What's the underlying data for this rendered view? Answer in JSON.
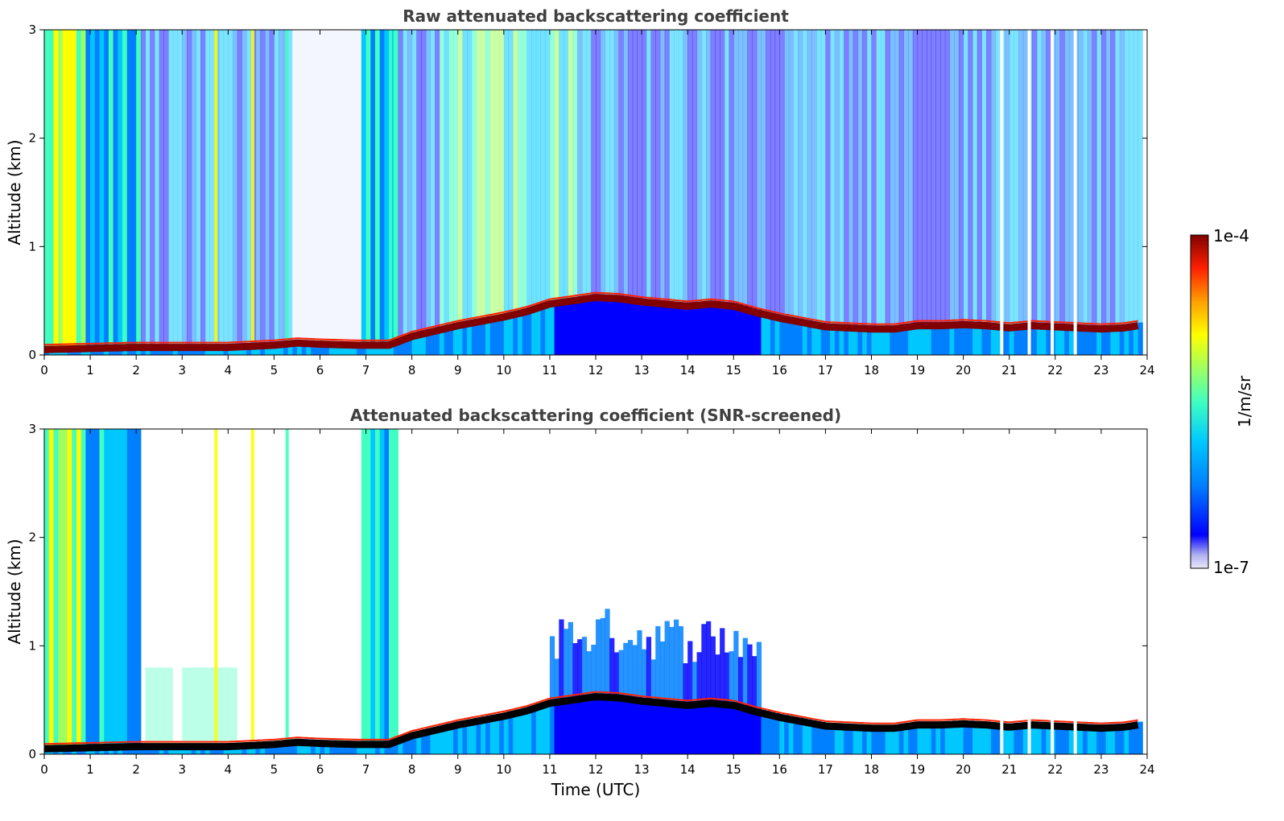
{
  "chart_data": [
    {
      "type": "heatmap",
      "title": "Raw attenuated backscattering coefficient",
      "xlabel": "",
      "ylabel": "Altitude (km)",
      "xlim": [
        0,
        24
      ],
      "ylim": [
        0,
        3
      ],
      "xticks": [
        "0",
        "1",
        "2",
        "3",
        "4",
        "5",
        "6",
        "7",
        "8",
        "9",
        "10",
        "11",
        "12",
        "13",
        "14",
        "15",
        "16",
        "17",
        "18",
        "19",
        "20",
        "21",
        "22",
        "23",
        "24"
      ],
      "yticks": [
        "0",
        "1",
        "2",
        "3"
      ],
      "grid": false,
      "layer_top_km": {
        "time_utc": [
          0,
          1,
          2,
          3,
          4,
          5,
          5.5,
          6,
          6.8,
          7.5,
          8,
          8.5,
          9,
          9.5,
          10,
          10.5,
          11,
          11.5,
          12,
          12.5,
          13,
          13.5,
          14,
          14.5,
          15,
          15.5,
          16,
          16.5,
          17,
          17.5,
          18,
          18.5,
          19,
          19.5,
          20,
          20.5,
          21,
          21.5,
          22,
          22.5,
          23,
          23.5,
          23.8
        ],
        "altitude_km": [
          0.08,
          0.09,
          0.1,
          0.1,
          0.1,
          0.12,
          0.14,
          0.13,
          0.12,
          0.12,
          0.2,
          0.25,
          0.3,
          0.34,
          0.38,
          0.43,
          0.5,
          0.53,
          0.56,
          0.55,
          0.52,
          0.5,
          0.48,
          0.5,
          0.48,
          0.42,
          0.37,
          0.33,
          0.29,
          0.28,
          0.27,
          0.27,
          0.3,
          0.3,
          0.31,
          0.3,
          0.28,
          0.3,
          0.29,
          0.28,
          0.27,
          0.28,
          0.3
        ]
      },
      "note_regions": "dense signal aloft 0–2 UTC and 6.8–7.6 UTC; sparse background elsewhere"
    },
    {
      "type": "heatmap",
      "title": "Attenuated backscattering coefficient (SNR-screened)",
      "xlabel": "Time (UTC)",
      "ylabel": "Altitude (km)",
      "xlim": [
        0,
        24
      ],
      "ylim": [
        0,
        3
      ],
      "xticks": [
        "0",
        "1",
        "2",
        "3",
        "4",
        "5",
        "6",
        "7",
        "8",
        "9",
        "10",
        "11",
        "12",
        "13",
        "14",
        "15",
        "16",
        "17",
        "18",
        "19",
        "20",
        "21",
        "22",
        "23",
        "24"
      ],
      "yticks": [
        "0",
        "1",
        "2",
        "3"
      ],
      "grid": false,
      "layer_top_km": {
        "time_utc": [
          0,
          1,
          2,
          3,
          4,
          5,
          5.5,
          6,
          6.8,
          7.5,
          8,
          8.5,
          9,
          9.5,
          10,
          10.5,
          11,
          11.5,
          12,
          12.5,
          13,
          13.5,
          14,
          14.5,
          15,
          15.5,
          16,
          16.5,
          17,
          17.5,
          18,
          18.5,
          19,
          19.5,
          20,
          20.5,
          21,
          21.5,
          22,
          22.5,
          23,
          23.5,
          23.8
        ],
        "altitude_km": [
          0.08,
          0.09,
          0.1,
          0.1,
          0.1,
          0.12,
          0.14,
          0.13,
          0.12,
          0.12,
          0.2,
          0.25,
          0.3,
          0.34,
          0.38,
          0.43,
          0.5,
          0.53,
          0.56,
          0.55,
          0.52,
          0.5,
          0.48,
          0.5,
          0.48,
          0.42,
          0.37,
          0.33,
          0.29,
          0.28,
          0.27,
          0.27,
          0.3,
          0.3,
          0.31,
          0.3,
          0.28,
          0.3,
          0.29,
          0.28,
          0.27,
          0.28,
          0.3
        ]
      }
    }
  ],
  "colorbar": {
    "max_label": "1e-4",
    "min_label": "1e-7",
    "unit_label": "1/m/sr",
    "scale": "log",
    "colormap": "jet",
    "colors": [
      "#e8e8f8",
      "#b0b0f0",
      "#0000ff",
      "#0080ff",
      "#00c8ff",
      "#40ffc0",
      "#a0ff60",
      "#ffff00",
      "#ffa000",
      "#ff2000",
      "#800000"
    ]
  }
}
